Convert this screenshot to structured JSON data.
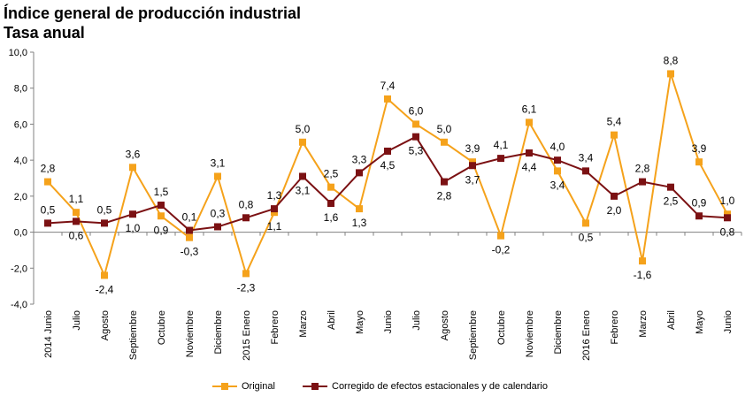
{
  "chart_data": {
    "type": "line",
    "title": "Índice general de producción industrial",
    "subtitle": "Tasa anual",
    "categories": [
      "2014 Junio",
      "Julio",
      "Agosto",
      "Septiembre",
      "Octubre",
      "Noviembre",
      "Diciembre",
      "2015 Enero",
      "Febrero",
      "Marzo",
      "Abril",
      "Mayo",
      "Junio",
      "Julio",
      "Agosto",
      "Septiembre",
      "Octubre",
      "Noviembre",
      "Diciembre",
      "2016 Enero",
      "Febrero",
      "Marzo",
      "Abril",
      "Mayo",
      "Junio"
    ],
    "series": [
      {
        "name": "Original",
        "color": "#F5A21B",
        "marker": "square",
        "values": [
          2.8,
          1.1,
          -2.4,
          3.6,
          0.9,
          -0.3,
          3.1,
          -2.3,
          1.1,
          5.0,
          2.5,
          1.3,
          7.4,
          6.0,
          5.0,
          3.9,
          -0.2,
          6.1,
          3.4,
          0.5,
          5.4,
          -1.6,
          8.8,
          3.9,
          1.0
        ],
        "labels": [
          "2,8",
          "1,1",
          "-2,4",
          "3,6",
          "0,9",
          "-0,3",
          "3,1",
          "-2,3",
          "1,1",
          "5,0",
          "2,5",
          "1,3",
          "7,4",
          "6,0",
          "5,0",
          "3,9",
          "-0,2",
          "6,1",
          "3,4",
          "0,5",
          "5,4",
          "-1,6",
          "8,8",
          "3,9",
          "1,0"
        ]
      },
      {
        "name": "Corregido de efectos estacionales y de calendario",
        "color": "#7B1113",
        "marker": "square",
        "values": [
          0.5,
          0.6,
          0.5,
          1.0,
          1.5,
          0.1,
          0.3,
          0.8,
          1.3,
          3.1,
          1.6,
          3.3,
          4.5,
          5.3,
          2.8,
          3.7,
          4.1,
          4.4,
          4.0,
          3.4,
          2.0,
          2.8,
          2.5,
          0.9,
          0.8
        ],
        "labels": [
          "0,5",
          "0,6",
          "0,5",
          "1,0",
          "1,5",
          "0,1",
          "0,3",
          "0,8",
          "1,3",
          "3,1",
          "1,6",
          "3,3",
          "4,5",
          "5,3",
          "2,8",
          "3,7",
          "4,1",
          "4,4",
          "4,0",
          "3,4",
          "2,0",
          "2,8",
          "2,5",
          "0,9",
          "0,8"
        ]
      }
    ],
    "ylim": [
      -4.0,
      10.0
    ],
    "yticks": [
      -4,
      -2,
      0,
      2,
      4,
      6,
      8,
      10
    ],
    "ytick_labels": [
      "-4,0",
      "-2,0",
      "0,0",
      "2,0",
      "4,0",
      "6,0",
      "8,0",
      "10,0"
    ],
    "xlabel": "",
    "ylabel": "",
    "grid": false,
    "legend_position": "bottom"
  }
}
